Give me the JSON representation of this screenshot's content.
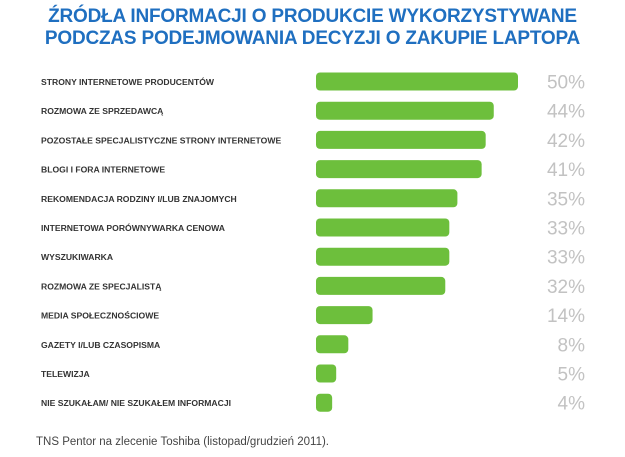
{
  "title_line1": "ŹRÓDŁA INFORMACJI O PRODUKCIE WYKORZYSTYWANE",
  "title_line2": "PODCZAS PODEJMOWANIA DECYZJI O ZAKUPIE LAPTOPA",
  "source": "TNS Pentor na zlecenie Toshiba (listopad/grudzień 2011).",
  "colors": {
    "title": "#1f6fc0",
    "bar": "#6dbf3c",
    "label": "#333333",
    "value": "#c2c2c2"
  },
  "chart_data": {
    "type": "bar",
    "orientation": "horizontal",
    "categories": [
      "STRONY INTERNETOWE PRODUCENTÓW",
      "ROZMOWA ZE SPRZEDAWCĄ",
      "POZOSTAŁE SPECJALISTYCZNE STRONY INTERNETOWE",
      "BLOGI I FORA INTERNETOWE",
      "REKOMENDACJA RODZINY I/LUB ZNAJOMYCH",
      "INTERNETOWA PORÓWNYWARKA CENOWA",
      "WYSZUKIWARKA",
      "ROZMOWA ZE SPECJALISTĄ",
      "MEDIA SPOŁECZNOŚCIOWE",
      "GAZETY I/LUB CZASOPISMA",
      "TELEWIZJA",
      "NIE SZUKAŁAM/ NIE SZUKAŁEM INFORMACJI"
    ],
    "values": [
      50,
      44,
      42,
      41,
      35,
      33,
      33,
      32,
      14,
      8,
      5,
      4
    ],
    "value_labels": [
      "50%",
      "44%",
      "42%",
      "41%",
      "35%",
      "33%",
      "33%",
      "32%",
      "14%",
      "8%",
      "5%",
      "4%"
    ],
    "title": "ŹRÓDŁA INFORMACJI O PRODUKCIE WYKORZYSTYWANE PODCZAS PODEJMOWANIA DECYZJI O ZAKUPIE LAPTOPA",
    "xlim": [
      0,
      50
    ],
    "grid": false,
    "legend": "none"
  }
}
